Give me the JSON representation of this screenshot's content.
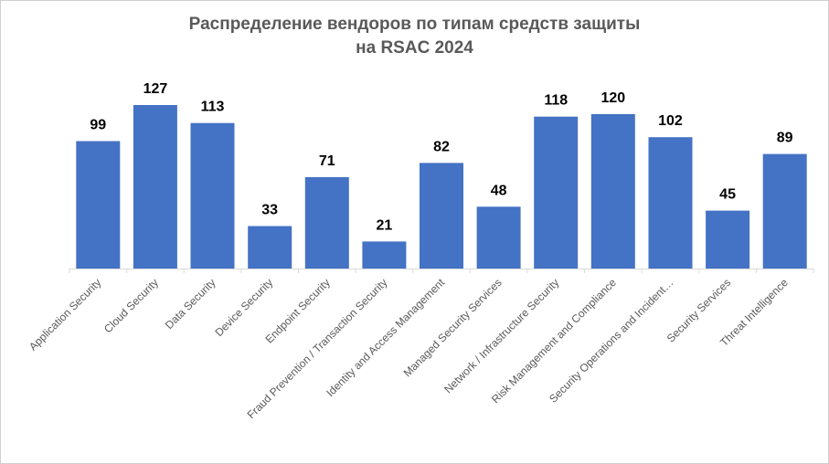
{
  "chart_data": {
    "type": "bar",
    "title": [
      "Распределение вендоров по типам средств защиты",
      "на RSAC 2024"
    ],
    "categories": [
      "Application Security",
      "Cloud Security",
      "Data Security",
      "Device Security",
      "Endpoint Security",
      "Fraud Prevention / Transaction Security",
      "Identity and Access Management",
      "Managed Security Services",
      "Network / Infrastructure Security",
      "Risk Management and Compliance",
      "Security Operations and Incident…",
      "Security Services",
      "Threat Intelligence"
    ],
    "values": [
      99,
      127,
      113,
      33,
      71,
      21,
      82,
      48,
      118,
      120,
      102,
      45,
      89
    ],
    "xlabel": "",
    "ylabel": "",
    "ylim": [
      0,
      127
    ],
    "grid": false,
    "legend": "none",
    "bar_color": "#4472C4"
  }
}
